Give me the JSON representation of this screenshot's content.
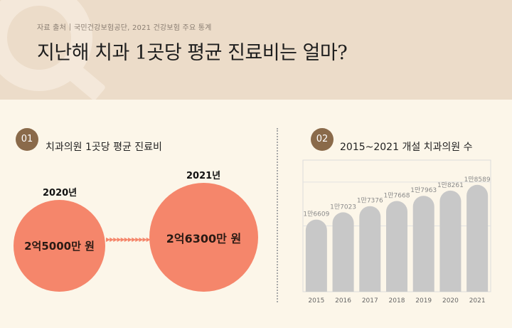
{
  "header": {
    "source_label": "자료 출처",
    "source_text": "국민건강보험공단, 2021 건강보험 주요 통계",
    "title": "지난해 치과 1곳당 평균 진료비는 얼마?"
  },
  "section1": {
    "badge": "01",
    "title": "치과의원 1곳당 평균 진료비",
    "left": {
      "year": "2020년",
      "value": "2억5000만 원"
    },
    "right": {
      "year": "2021년",
      "value": "2억6300만 원"
    }
  },
  "section2": {
    "badge": "02",
    "title": "2015~2021 개설 치과의원 수"
  },
  "colors": {
    "bar": "#c8c8c8",
    "circle": "#f5866b",
    "badge": "#8a6a4a"
  },
  "chart_data": {
    "type": "bar",
    "title": "2015~2021 개설 치과의원 수",
    "categories": [
      "2015",
      "2016",
      "2017",
      "2018",
      "2019",
      "2020",
      "2021"
    ],
    "values": [
      16609,
      17023,
      17376,
      17668,
      17963,
      18261,
      18589
    ],
    "value_labels": [
      "1만6609",
      "1만7023",
      "1만7376",
      "1만7668",
      "1만7963",
      "1만8261",
      "1만8589"
    ],
    "grid": true,
    "xlabel": "",
    "ylabel": ""
  }
}
